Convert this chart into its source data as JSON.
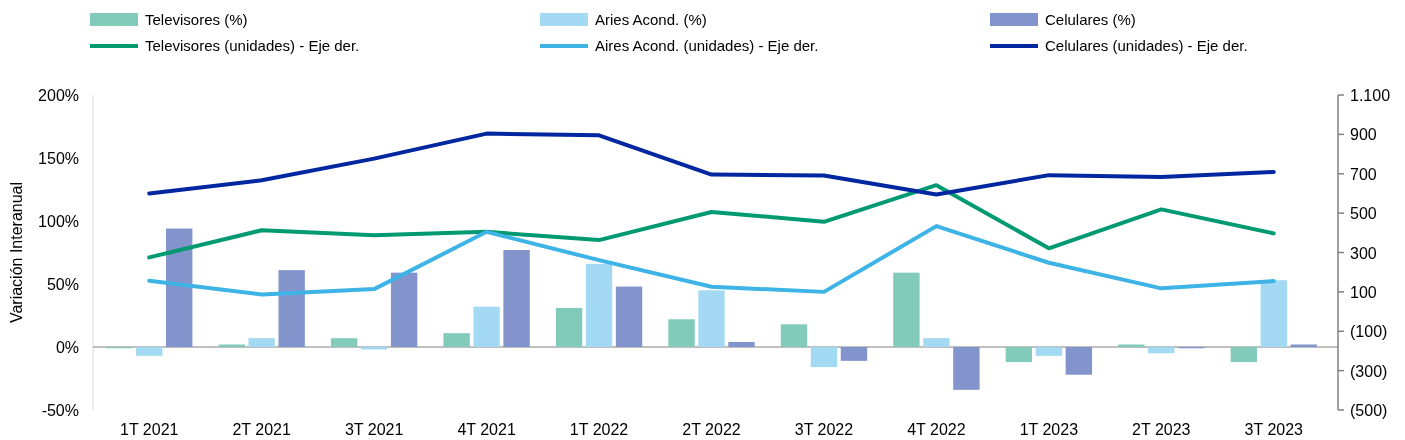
{
  "chart_data": {
    "type": "bar",
    "ylabel": "Variación Interanual",
    "legend": "top",
    "categories": [
      "1T 2021",
      "2T 2021",
      "3T 2021",
      "4T 2021",
      "1T 2022",
      "2T 2022",
      "3T 2022",
      "4T 2022",
      "1T 2023",
      "2T 2023",
      "3T 2023"
    ],
    "series": [
      {
        "name": "Televisores (%)",
        "color": "#82cbbb",
        "values": [
          -1,
          2,
          7,
          11,
          31,
          22,
          18,
          59,
          -12,
          2,
          -12
        ]
      },
      {
        "name": "Aries Acond. (%)",
        "color": "#a3d9f2",
        "values": [
          -7,
          7,
          -2,
          32,
          66,
          45,
          -16,
          7,
          -7,
          -5,
          53
        ]
      },
      {
        "name": "Celulares (%)",
        "color": "#8394cc",
        "values": [
          94,
          61,
          59,
          77,
          48,
          4,
          -11,
          -34,
          -22,
          -1,
          2
        ]
      },
      {
        "name": "Televisores (unidades) - Eje der.",
        "type": "line",
        "axis": "y2",
        "color": "#009a72",
        "values": [
          275,
          413,
          387,
          405,
          363,
          506,
          456,
          642,
          321,
          519,
          397
        ]
      },
      {
        "name": "Aires Acond. (unidades) - Eje der.",
        "type": "line",
        "axis": "y2",
        "color": "#3db3e6",
        "values": [
          156,
          87,
          114,
          405,
          261,
          126,
          100,
          434,
          248,
          118,
          155
        ]
      },
      {
        "name": "Celulares (unidades) - Eje der.",
        "type": "line",
        "axis": "y2",
        "color": "#0027a0",
        "values": [
          600,
          667,
          777,
          904,
          895,
          696,
          691,
          595,
          693,
          684,
          709
        ]
      }
    ],
    "ylim": [
      -50,
      200
    ],
    "yticks": [
      {
        "value": -50,
        "label": "-50%"
      },
      {
        "value": 0,
        "label": "0%"
      },
      {
        "value": 50,
        "label": "50%"
      },
      {
        "value": 100,
        "label": "100%"
      },
      {
        "value": 150,
        "label": "150%"
      },
      {
        "value": 200,
        "label": "200%"
      }
    ],
    "y2lim": [
      -500,
      1100
    ],
    "y2ticks": [
      {
        "value": -500,
        "label": "(500)"
      },
      {
        "value": -300,
        "label": "(300)"
      },
      {
        "value": -100,
        "label": "(100)"
      },
      100,
      300,
      500,
      700,
      900,
      {
        "value": 1100,
        "label": "1.100"
      }
    ]
  }
}
